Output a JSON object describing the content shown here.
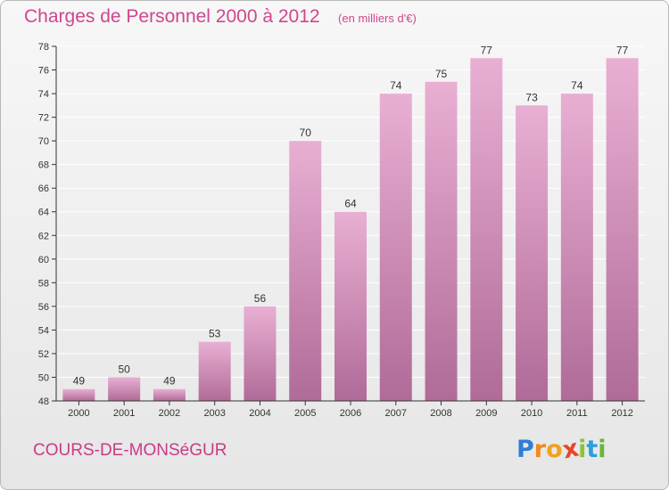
{
  "header": {
    "title": "Charges de Personnel 2000 à 2012",
    "subtitle": "(en milliers d'€)"
  },
  "footer": {
    "commune": "COURS-DE-MONSéGUR",
    "logo_letters": [
      "P",
      "r",
      "o",
      "x",
      "i",
      "t",
      "i"
    ],
    "logo_colors": [
      "#2f7fd6",
      "#f08a1c",
      "#f0a21c",
      "#e8452c",
      "#8bc33a",
      "#2f9fd6",
      "#6ab43a"
    ]
  },
  "colors": {
    "bar_light": "#e9afd3",
    "bar_dark": "#b06b98",
    "axis": "#333333",
    "grid": "#ffffff"
  },
  "chart_data": {
    "type": "bar",
    "title": "Charges de Personnel 2000 à 2012",
    "subtitle": "(en milliers d'€)",
    "categories": [
      "2000",
      "2001",
      "2002",
      "2003",
      "2004",
      "2005",
      "2006",
      "2007",
      "2008",
      "2009",
      "2010",
      "2011",
      "2012"
    ],
    "values": [
      49,
      50,
      49,
      53,
      56,
      70,
      64,
      74,
      75,
      77,
      73,
      74,
      77
    ],
    "ylim": [
      48,
      78
    ],
    "yticks": [
      48,
      50,
      52,
      54,
      56,
      58,
      60,
      62,
      64,
      66,
      68,
      70,
      72,
      74,
      76,
      78
    ],
    "grid": true,
    "data_labels": true
  }
}
